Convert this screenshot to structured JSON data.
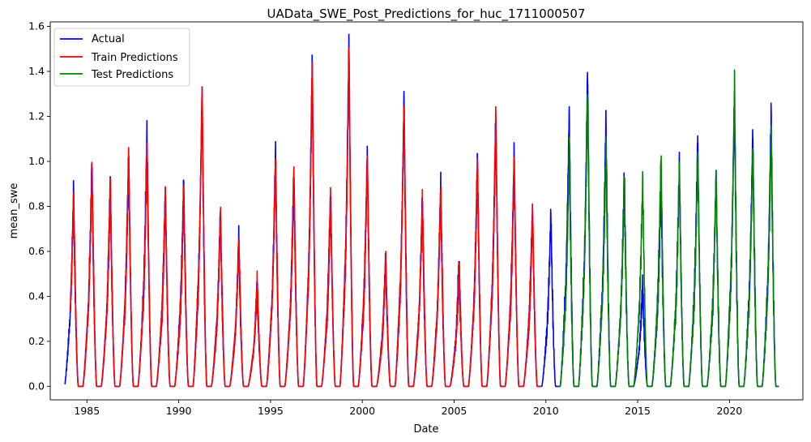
{
  "chart_data": {
    "type": "line",
    "title": "UAData_SWE_Post_Predictions_for_huc_1711000507",
    "xlabel": "Date",
    "ylabel": "mean_swe",
    "xlim": [
      1983.0,
      2024.0
    ],
    "ylim": [
      -0.06,
      1.62
    ],
    "xticks": [
      1985,
      1990,
      1995,
      2000,
      2005,
      2010,
      2015,
      2020
    ],
    "yticks": [
      0.0,
      0.2,
      0.4,
      0.6,
      0.8,
      1.0,
      1.2,
      1.4,
      1.6
    ],
    "ytick_labels": [
      "0.0",
      "0.2",
      "0.4",
      "0.6",
      "0.8",
      "1.0",
      "1.2",
      "1.4",
      "1.6"
    ],
    "grid": false,
    "legend_position": "top-left",
    "series": [
      {
        "name": "Actual",
        "color": "#0000ff"
      },
      {
        "name": "Train Predictions",
        "color": "#ff0000"
      },
      {
        "name": "Test Predictions",
        "color": "#008000"
      }
    ],
    "seasonal_peaks": [
      {
        "year": 1984,
        "actual": 0.86,
        "pred": 0.86
      },
      {
        "year": 1985,
        "actual": 1.01,
        "pred": 0.97
      },
      {
        "year": 1986,
        "actual": 0.91,
        "pred": 0.91
      },
      {
        "year": 1987,
        "actual": 1.04,
        "pred": 1.04
      },
      {
        "year": 1988,
        "actual": 1.15,
        "pred": 1.07
      },
      {
        "year": 1989,
        "actual": 0.88,
        "pred": 0.87
      },
      {
        "year": 1990,
        "actual": 0.93,
        "pred": 0.86
      },
      {
        "year": 1991,
        "actual": 1.33,
        "pred": 1.34
      },
      {
        "year": 1992,
        "actual": 0.79,
        "pred": 0.78
      },
      {
        "year": 1993,
        "actual": 0.66,
        "pred": 0.66
      },
      {
        "year": 1994,
        "actual": 0.45,
        "pred": 0.46
      },
      {
        "year": 1995,
        "actual": 1.04,
        "pred": 1.03
      },
      {
        "year": 1996,
        "actual": 0.96,
        "pred": 0.95
      },
      {
        "year": 1997,
        "actual": 1.45,
        "pred": 1.45
      },
      {
        "year": 1998,
        "actual": 0.87,
        "pred": 0.86
      },
      {
        "year": 1999,
        "actual": 1.55,
        "pred": 1.5
      },
      {
        "year": 2000,
        "actual": 1.06,
        "pred": 1.03
      },
      {
        "year": 2001,
        "actual": 0.58,
        "pred": 0.57
      },
      {
        "year": 2002,
        "actual": 1.29,
        "pred": 1.27
      },
      {
        "year": 2003,
        "actual": 0.84,
        "pred": 0.84
      },
      {
        "year": 2004,
        "actual": 0.9,
        "pred": 0.89
      },
      {
        "year": 2005,
        "actual": 0.55,
        "pred": 0.5
      },
      {
        "year": 2006,
        "actual": 1.01,
        "pred": 1.01
      },
      {
        "year": 2007,
        "actual": 1.22,
        "pred": 1.22
      },
      {
        "year": 2008,
        "actual": 1.04,
        "pred": 1.02
      },
      {
        "year": 2009,
        "actual": 0.8,
        "pred": 0.79
      },
      {
        "year": 2010,
        "actual": 0.78,
        "pred": null
      },
      {
        "year": 2011,
        "actual": 1.24,
        "pred": 1.06
      },
      {
        "year": 2012,
        "actual": 1.42,
        "pred": 1.33
      },
      {
        "year": 2013,
        "actual": 1.2,
        "pred": 1.07
      },
      {
        "year": 2014,
        "actual": 0.95,
        "pred": 0.93
      },
      {
        "year": 2015,
        "actual": 0.45,
        "pred": 0.92
      },
      {
        "year": 2016,
        "actual": 0.92,
        "pred": 1.04
      },
      {
        "year": 2017,
        "actual": 1.0,
        "pred": 0.99
      },
      {
        "year": 2018,
        "actual": 1.12,
        "pred": 1.05
      },
      {
        "year": 2019,
        "actual": 0.95,
        "pred": 0.96
      },
      {
        "year": 2020,
        "actual": 1.3,
        "pred": 1.36
      },
      {
        "year": 2021,
        "actual": 1.15,
        "pred": 1.08
      },
      {
        "year": 2022,
        "actual": 1.24,
        "pred": 1.14
      }
    ],
    "train_end": 2009.8,
    "test_start": 2010.4,
    "actual_start": 1983.8,
    "end": 2022.7
  }
}
